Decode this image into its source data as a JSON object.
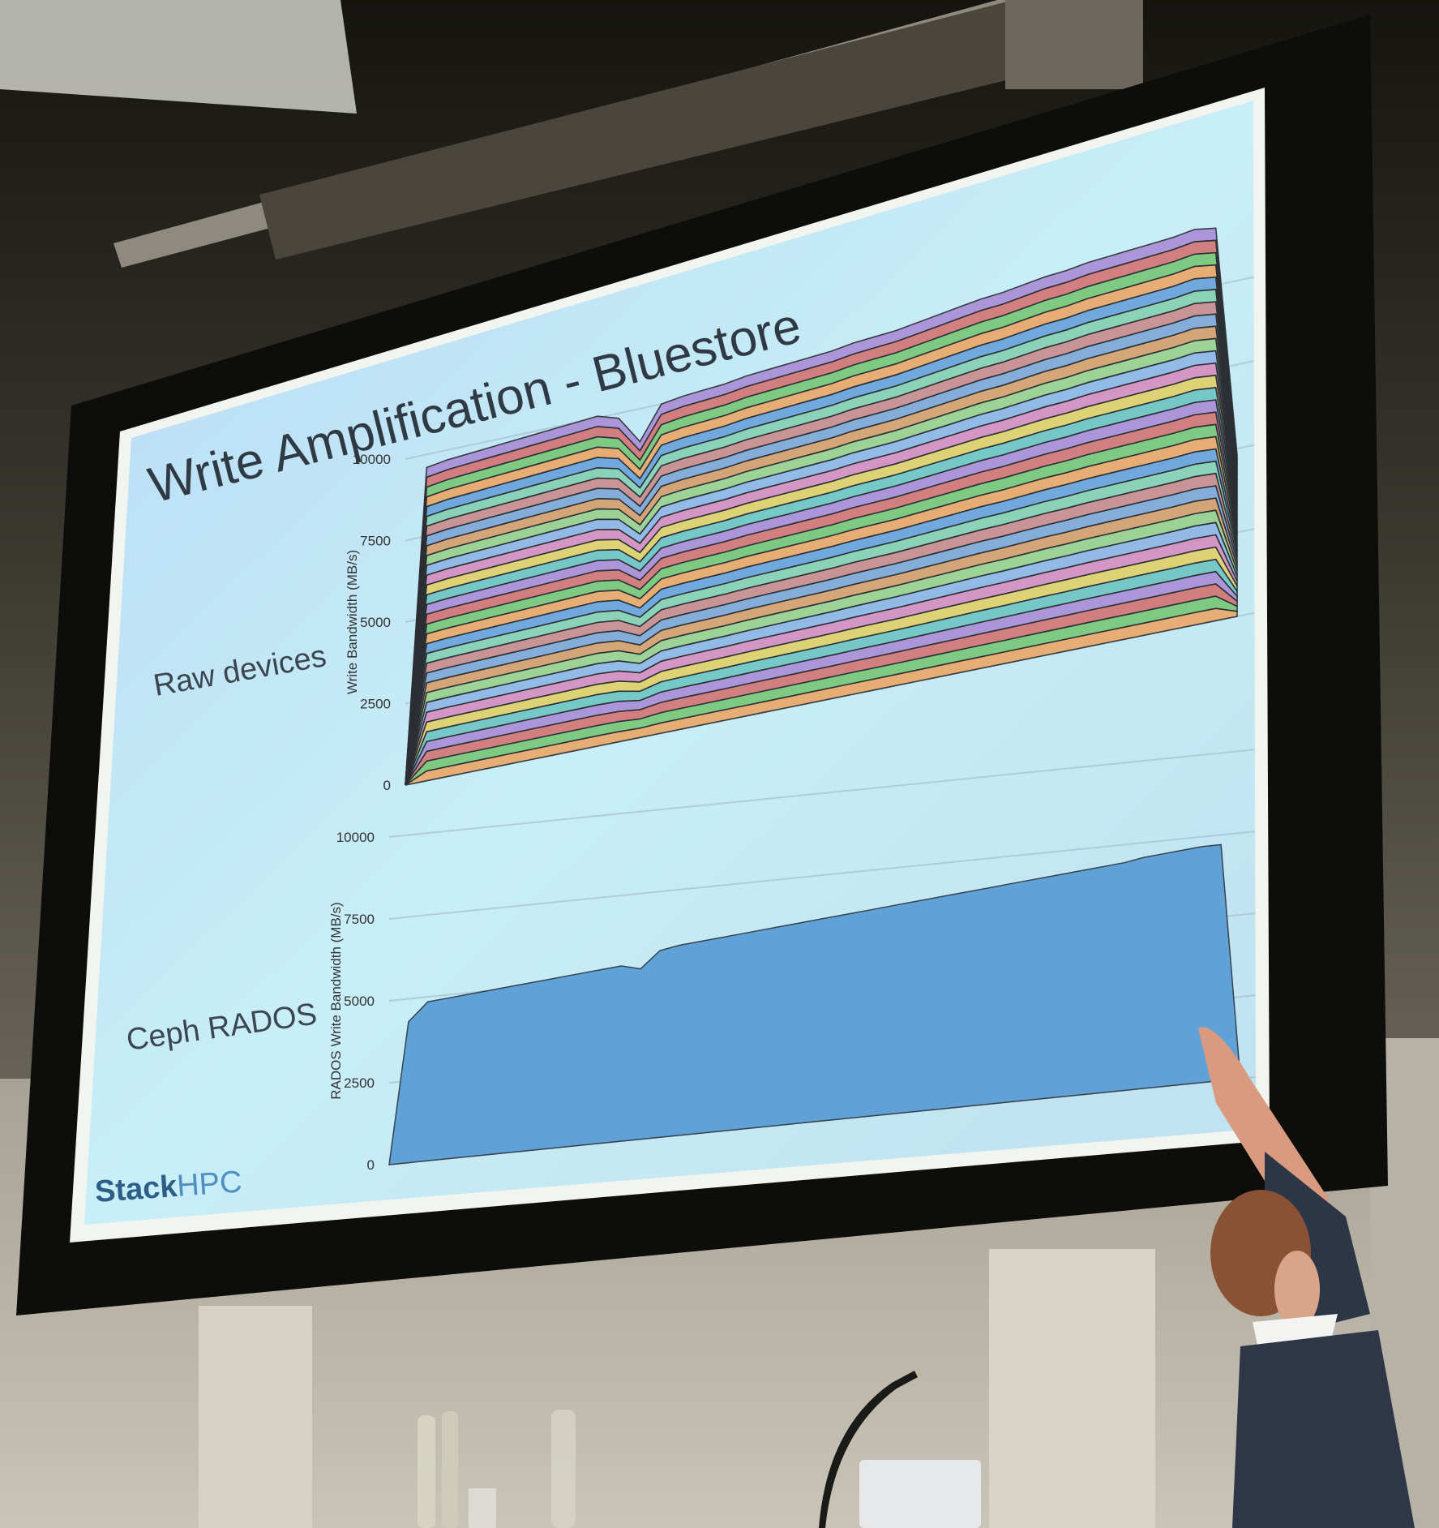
{
  "slide": {
    "title": "Write Amplification - Bluestore",
    "brand": {
      "part1": "Stack",
      "part2": "HPC"
    },
    "colors": {
      "slide_bg": "#c9ecf5",
      "area_blue": "#5b9fd6",
      "brand_dark": "#2d5e87",
      "brand_light": "#4f8ec2"
    }
  },
  "chart_data": [
    {
      "type": "area",
      "row_label": "Raw devices",
      "ylabel": "Write Bandwidth (MB/s)",
      "ylim": [
        0,
        10000
      ],
      "y_ticks": [
        "0",
        "2500",
        "5000",
        "7500",
        "10000"
      ],
      "stacked": true,
      "series_count": 32,
      "total_profile": [
        0,
        9600,
        9700,
        9750,
        9800,
        9850,
        9900,
        9950,
        10000,
        10050,
        9850,
        9000,
        10000,
        10100,
        10150,
        10200,
        10300,
        10350,
        10400,
        10450,
        10500,
        10600,
        10650,
        10700,
        10800,
        10900,
        11000,
        11100,
        11150,
        11250,
        11350,
        11400,
        11500,
        11550,
        11600,
        11650,
        11700,
        11800,
        11700,
        4800
      ]
    },
    {
      "type": "area",
      "row_label": "Ceph RADOS",
      "ylabel": "RADOS Write Bandwidth (MB/s)",
      "ylim": [
        0,
        10000
      ],
      "y_ticks": [
        "0",
        "2500",
        "5000",
        "7500",
        "10000"
      ],
      "values": [
        0,
        4300,
        4850,
        4900,
        4950,
        5000,
        5050,
        5100,
        5150,
        5200,
        5250,
        5300,
        5350,
        5200,
        5700,
        5800,
        5850,
        5900,
        5950,
        6000,
        6050,
        6100,
        6150,
        6200,
        6250,
        6300,
        6350,
        6400,
        6450,
        6500,
        6550,
        6600,
        6650,
        6700,
        6750,
        6800,
        6850,
        6900,
        6950,
        7050,
        7100,
        7150,
        7200,
        7200,
        0
      ]
    }
  ]
}
